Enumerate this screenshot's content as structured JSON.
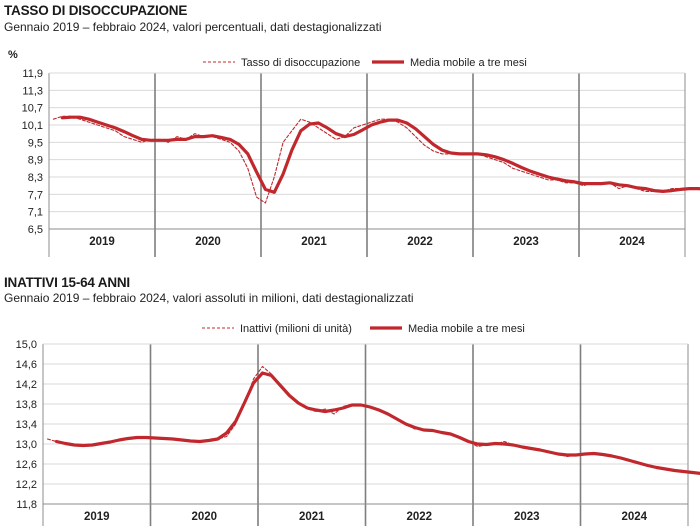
{
  "chart_data": [
    {
      "type": "line",
      "title": "TASSO DI DISOCCUPAZIONE",
      "subtitle": "Gennaio 2019 – febbraio 2024, valori percentuali, dati destagionalizzati",
      "ylabel": "%",
      "ylim": [
        6.5,
        11.9
      ],
      "yticks": [
        "11,9",
        "11,3",
        "10,7",
        "10,1",
        "9,5",
        "8,9",
        "8,3",
        "7,7",
        "7,1",
        "6,5"
      ],
      "year_labels": [
        "2019",
        "2020",
        "2021",
        "2022",
        "2023",
        "2024"
      ],
      "legend_position": "top",
      "series": [
        {
          "name": "Tasso di disoccupazione",
          "style": "dashed",
          "color": "#c0282d",
          "values": [
            10.3,
            10.4,
            10.4,
            10.3,
            10.2,
            10.1,
            10.0,
            9.9,
            9.7,
            9.6,
            9.5,
            9.6,
            9.6,
            9.5,
            9.7,
            9.6,
            9.8,
            9.7,
            9.7,
            9.6,
            9.5,
            9.2,
            8.6,
            7.6,
            7.4,
            8.3,
            9.5,
            9.9,
            10.3,
            10.2,
            10.0,
            9.8,
            9.6,
            9.7,
            10.0,
            10.1,
            10.2,
            10.3,
            10.3,
            10.2,
            10.0,
            9.7,
            9.4,
            9.2,
            9.1,
            9.1,
            9.1,
            9.1,
            9.1,
            9.0,
            8.9,
            8.8,
            8.6,
            8.5,
            8.4,
            8.3,
            8.2,
            8.2,
            8.1,
            8.1,
            8.0,
            8.1,
            8.1,
            8.1,
            7.9,
            8.0,
            7.9,
            7.8,
            7.8,
            7.8,
            7.9,
            7.9,
            7.9,
            7.9,
            7.8,
            7.8,
            7.8,
            7.8,
            7.7,
            7.6,
            7.6,
            7.6,
            7.6,
            7.6,
            7.7,
            7.6,
            7.4,
            7.3,
            7.3,
            7.4,
            7.5
          ]
        },
        {
          "name": "Media mobile a tre mesi",
          "style": "solid",
          "color": "#c0282d",
          "values": [
            null,
            10.35,
            10.37,
            10.37,
            10.3,
            10.2,
            10.1,
            10.0,
            9.87,
            9.73,
            9.6,
            9.57,
            9.57,
            9.57,
            9.6,
            9.6,
            9.7,
            9.7,
            9.73,
            9.67,
            9.6,
            9.43,
            9.1,
            8.47,
            7.87,
            7.77,
            8.4,
            9.23,
            9.9,
            10.13,
            10.17,
            10.0,
            9.8,
            9.7,
            9.77,
            9.93,
            10.1,
            10.2,
            10.27,
            10.27,
            10.17,
            9.97,
            9.7,
            9.43,
            9.23,
            9.13,
            9.1,
            9.1,
            9.1,
            9.07,
            9.0,
            8.9,
            8.77,
            8.63,
            8.5,
            8.4,
            8.3,
            8.23,
            8.17,
            8.13,
            8.07,
            8.07,
            8.07,
            8.1,
            8.03,
            8.0,
            7.93,
            7.9,
            7.83,
            7.8,
            7.83,
            7.87,
            7.9,
            7.9,
            7.87,
            7.83,
            7.8,
            7.8,
            7.77,
            7.7,
            7.63,
            7.6,
            7.6,
            7.6,
            7.63,
            7.63,
            7.57,
            7.43,
            7.33,
            7.33,
            null
          ]
        }
      ]
    },
    {
      "type": "line",
      "title": "INATTIVI 15-64 ANNI",
      "subtitle": "Gennaio 2019 – febbraio 2024, valori assoluti in milioni, dati destagionalizzati",
      "ylabel": "",
      "ylim": [
        11.8,
        15.0
      ],
      "yticks": [
        "15,0",
        "14,6",
        "14,2",
        "13,8",
        "13,4",
        "13,0",
        "12,6",
        "12,2",
        "11,8"
      ],
      "year_labels": [
        "2019",
        "2020",
        "2021",
        "2022",
        "2023",
        "2024"
      ],
      "legend_position": "top",
      "series": [
        {
          "name": "Inattivi (milioni di unità)",
          "style": "dashed",
          "color": "#c0282d",
          "values": [
            13.1,
            13.05,
            13.0,
            12.98,
            12.96,
            12.98,
            13.0,
            13.05,
            13.08,
            13.12,
            13.13,
            13.15,
            13.12,
            13.1,
            13.12,
            13.08,
            13.05,
            13.06,
            13.05,
            13.1,
            13.15,
            13.4,
            13.8,
            14.3,
            14.55,
            14.4,
            14.15,
            13.95,
            13.8,
            13.7,
            13.65,
            13.7,
            13.6,
            13.75,
            13.8,
            13.78,
            13.75,
            13.7,
            13.6,
            13.5,
            13.4,
            13.3,
            13.3,
            13.25,
            13.25,
            13.2,
            13.15,
            13.05,
            12.95,
            12.98,
            13.0,
            13.05,
            12.98,
            12.95,
            12.9,
            12.88,
            12.85,
            12.8,
            12.75,
            12.78,
            12.8,
            12.82,
            12.8,
            12.76,
            12.72,
            12.68,
            12.62,
            12.58,
            12.52,
            12.5,
            12.48,
            12.45,
            12.42,
            12.42,
            12.4,
            12.38,
            12.36,
            12.3,
            12.25,
            12.22,
            12.24,
            12.25,
            12.28,
            12.3,
            12.32,
            12.3,
            12.28
          ]
        },
        {
          "name": "Media mobile a tre mesi",
          "style": "solid",
          "color": "#c0282d",
          "values": [
            null,
            13.05,
            13.01,
            12.98,
            12.97,
            12.98,
            13.01,
            13.04,
            13.08,
            13.11,
            13.13,
            13.13,
            13.12,
            13.11,
            13.1,
            13.08,
            13.06,
            13.05,
            13.07,
            13.1,
            13.22,
            13.45,
            13.83,
            14.22,
            14.42,
            14.37,
            14.17,
            13.97,
            13.82,
            13.72,
            13.68,
            13.65,
            13.68,
            13.72,
            13.78,
            13.78,
            13.74,
            13.68,
            13.6,
            13.5,
            13.4,
            13.33,
            13.28,
            13.27,
            13.23,
            13.2,
            13.13,
            13.05,
            13.0,
            12.99,
            13.01,
            13.0,
            12.98,
            12.94,
            12.91,
            12.88,
            12.84,
            12.8,
            12.78,
            12.78,
            12.8,
            12.81,
            12.79,
            12.76,
            12.72,
            12.67,
            12.62,
            12.57,
            12.53,
            12.5,
            12.47,
            12.45,
            12.43,
            12.41,
            12.39,
            12.36,
            12.32,
            12.28,
            12.25,
            12.24,
            12.25,
            12.27,
            12.29,
            12.3,
            12.31,
            12.3,
            null
          ]
        }
      ]
    }
  ]
}
